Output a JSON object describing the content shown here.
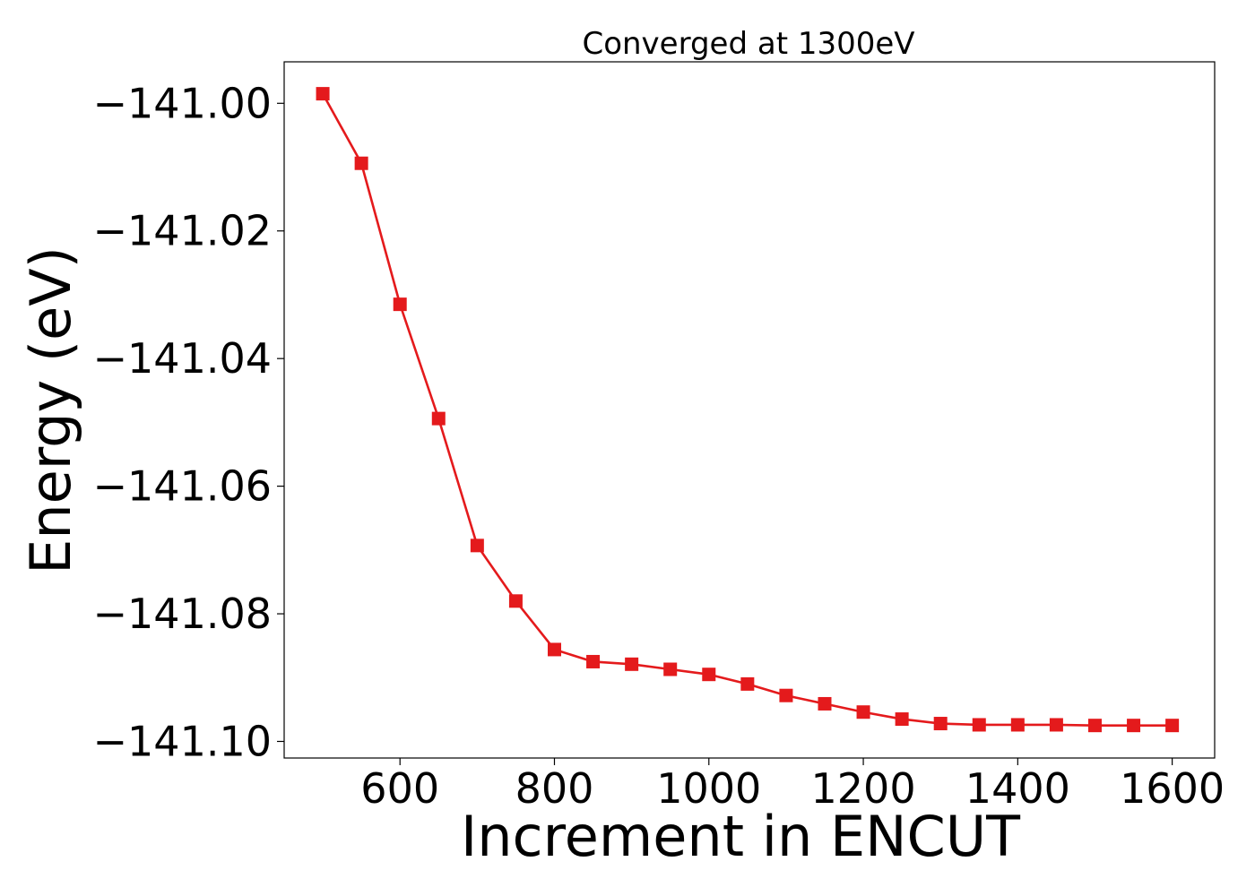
{
  "chart_data": {
    "type": "line",
    "title": "Converged at 1300eV",
    "xlabel": "Increment in ENCUT",
    "ylabel": "Energy (eV)",
    "xlim": [
      450,
      1655
    ],
    "ylim": [
      -141.1026,
      -140.9935
    ],
    "xticks": [
      {
        "value": 600,
        "label": "600"
      },
      {
        "value": 800,
        "label": "800"
      },
      {
        "value": 1000,
        "label": "1000"
      },
      {
        "value": 1200,
        "label": "1200"
      },
      {
        "value": 1400,
        "label": "1400"
      },
      {
        "value": 1600,
        "label": "1600"
      }
    ],
    "yticks": [
      {
        "value": -141.0,
        "label": "−141.00"
      },
      {
        "value": -141.02,
        "label": "−141.02"
      },
      {
        "value": -141.04,
        "label": "−141.04"
      },
      {
        "value": -141.06,
        "label": "−141.06"
      },
      {
        "value": -141.08,
        "label": "−141.08"
      },
      {
        "value": -141.1,
        "label": "−141.10"
      }
    ],
    "grid": false,
    "series": [
      {
        "color": "#e41a1c",
        "marker": "square",
        "x": [
          500,
          550,
          600,
          650,
          700,
          750,
          800,
          850,
          900,
          950,
          1000,
          1050,
          1100,
          1150,
          1200,
          1250,
          1300,
          1350,
          1400,
          1450,
          1500,
          1550,
          1600
        ],
        "y": [
          -140.9985,
          -141.0094,
          -141.0315,
          -141.0494,
          -141.0693,
          -141.078,
          -141.0856,
          -141.0875,
          -141.0879,
          -141.0887,
          -141.0895,
          -141.091,
          -141.0928,
          -141.0941,
          -141.0954,
          -141.0965,
          -141.0972,
          -141.0974,
          -141.0974,
          -141.0974,
          -141.0975,
          -141.0975,
          -141.0975
        ]
      }
    ]
  }
}
